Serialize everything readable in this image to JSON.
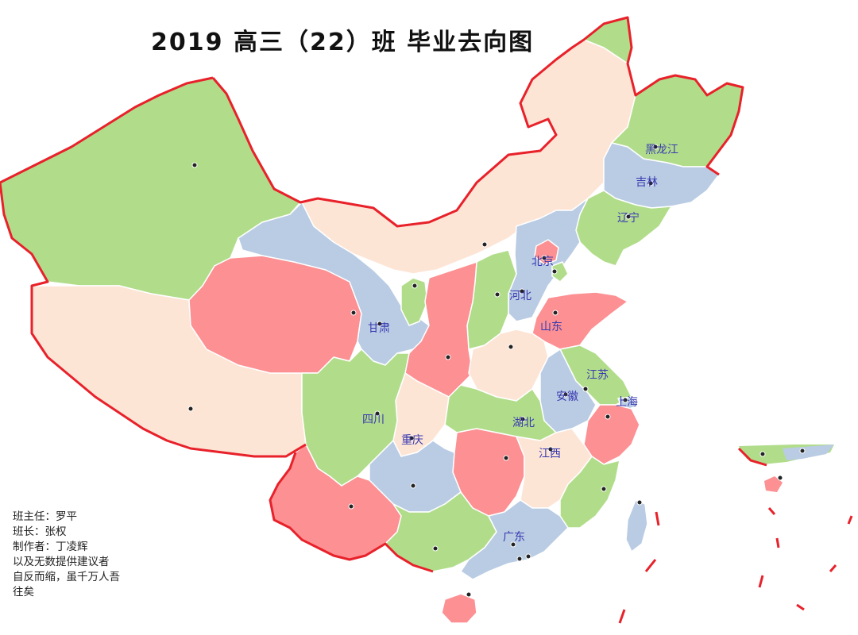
{
  "title": "2019 高三（22）班 毕业去向图",
  "credits": [
    "班主任：罗平",
    "班长：张权",
    "制作者：丁凌辉",
    "以及无数提供建议者",
    "自反而缩，虽千万人吾",
    "往矣"
  ],
  "colors": {
    "green": "#b1dd8b",
    "blue": "#b9cce4",
    "red": "#fc9093",
    "peach": "#fde5d6",
    "border": "#e8212a",
    "label": "#3a3ab0"
  },
  "province_labels": [
    "黑龙江",
    "吉林",
    "辽宁",
    "北京",
    "河北",
    "山东",
    "甘肃",
    "江苏",
    "安徽",
    "上海",
    "四川",
    "湖北",
    "重庆",
    "江西",
    "广东"
  ]
}
